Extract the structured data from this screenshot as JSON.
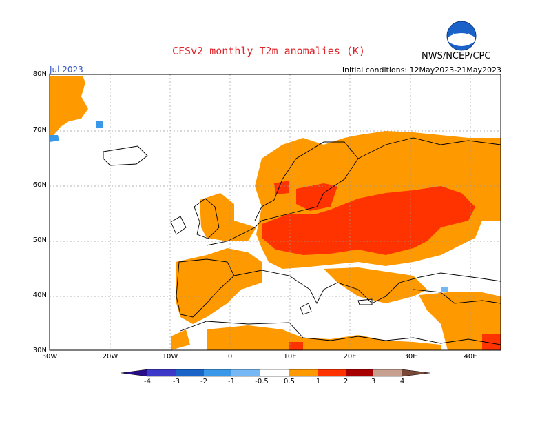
{
  "title": "CFSv2 monthly T2m anomalies (K)",
  "month": "Jul 2023",
  "initial_conditions": "Initial conditions: 12May2023-21May2023",
  "agency": "NWS/NCEP/CPC",
  "logo_text": "NOAA",
  "colors": {
    "title": "#e0242a",
    "month": "#3557c8",
    "anom_05_1": "#ff9900",
    "anom_1_2": "#ff3300",
    "anom_2_3": "#a80000",
    "anom_3_4": "#c8a090",
    "anom_4p": "#7a4838",
    "neg_05_1": "#76b8f6",
    "neg_1_2": "#3a98e8",
    "neg_2_3": "#1a64c8",
    "neg_3_4": "#3c38c8",
    "neg_4p": "#280c8c"
  },
  "map": {
    "lat_labels": [
      "80N",
      "70N",
      "60N",
      "50N",
      "40N",
      "30N"
    ],
    "lon_labels": [
      "30W",
      "20W",
      "10W",
      "0",
      "10E",
      "20E",
      "30E",
      "40E"
    ]
  },
  "colorbar": {
    "labels": [
      "-4",
      "-3",
      "-2",
      "-1",
      "-0.5",
      "0.5",
      "1",
      "2",
      "3",
      "4"
    ]
  }
}
